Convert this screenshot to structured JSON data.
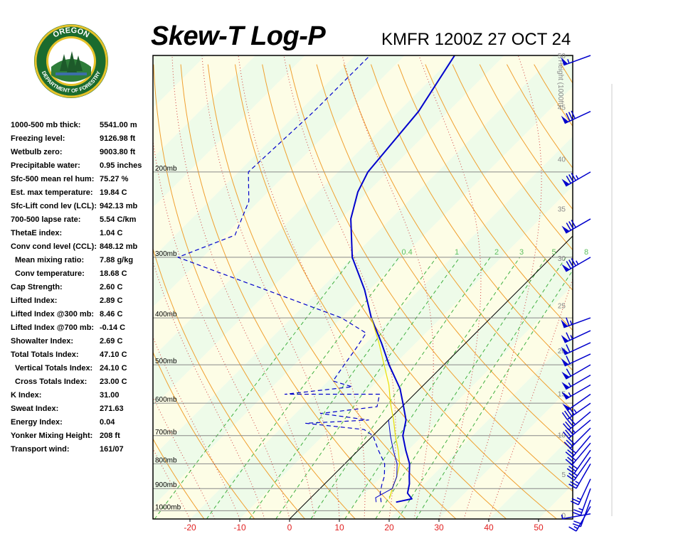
{
  "header": {
    "title": "Skew-T Log-P",
    "station_time": "KMFR 1200Z 27 OCT 24"
  },
  "logo": {
    "top_text": "OREGON",
    "bottom_text": "DEPARTMENT OF FORESTRY"
  },
  "indices": [
    {
      "label": "1000-500 mb thick:",
      "value": "5541.00 m"
    },
    {
      "label": "Freezing level:",
      "value": "9126.98 ft"
    },
    {
      "label": "Wetbulb zero:",
      "value": "9003.80 ft"
    },
    {
      "label": "Precipitable water:",
      "value": "0.95 inches"
    },
    {
      "label": "Sfc-500 mean rel hum:",
      "value": "75.27 %"
    },
    {
      "label": "Est. max temperature:",
      "value": "19.84 C"
    },
    {
      "label": "Sfc-Lift cond lev (LCL):",
      "value": "942.13 mb"
    },
    {
      "label": "700-500 lapse rate:",
      "value": "5.54 C/km"
    },
    {
      "label": "ThetaE index:",
      "value": "1.04 C"
    },
    {
      "label": "Conv cond level (CCL):",
      "value": "848.12 mb"
    },
    {
      "label": "Mean mixing ratio:",
      "value": "7.88 g/kg",
      "indent": true
    },
    {
      "label": "Conv temperature:",
      "value": "18.68 C",
      "indent": true
    },
    {
      "label": "Cap Strength:",
      "value": "2.60 C"
    },
    {
      "label": "Lifted Index:",
      "value": "2.89 C"
    },
    {
      "label": "Lifted Index @300 mb:",
      "value": "8.46 C"
    },
    {
      "label": "Lifted Index @700 mb:",
      "value": "-0.14 C"
    },
    {
      "label": "Showalter Index:",
      "value": "2.69 C"
    },
    {
      "label": "Total Totals Index:",
      "value": "47.10 C"
    },
    {
      "label": "Vertical Totals Index:",
      "value": "24.10 C",
      "indent": true
    },
    {
      "label": "Cross Totals Index:",
      "value": "23.00 C",
      "indent": true
    },
    {
      "label": "K Index:",
      "value": "31.00"
    },
    {
      "label": "Sweat Index:",
      "value": "271.63"
    },
    {
      "label": "Energy Index:",
      "value": "0.04"
    },
    {
      "label": "Yonker Mixing Height:",
      "value": "208 ft"
    },
    {
      "label": "Transport wind:",
      "value": "161/07"
    }
  ],
  "chart_data": {
    "type": "line",
    "xlabel_ticks": [
      "-20",
      "-10",
      "0",
      "10",
      "20",
      "30",
      "40",
      "50"
    ],
    "x_ticks": [
      -20,
      -10,
      0,
      10,
      20,
      30,
      40,
      50
    ],
    "xlim": [
      -29,
      56
    ],
    "x_unit": "C",
    "pressure_levels": [
      200,
      300,
      400,
      500,
      600,
      700,
      800,
      900,
      1000
    ],
    "pressure_labels": [
      "200mb",
      "300mb",
      "400mb",
      "500mb",
      "600mb",
      "700mb",
      "800mb",
      "900mb",
      "1000mb"
    ],
    "height_axis_label": "Height (1000ft)",
    "height_ticks": [
      {
        "label": "0",
        "p": 1020
      },
      {
        "label": "5",
        "p": 840
      },
      {
        "label": "10",
        "p": 697
      },
      {
        "label": "15",
        "p": 573
      },
      {
        "label": "20",
        "p": 467
      },
      {
        "label": "25",
        "p": 377
      },
      {
        "label": "30",
        "p": 301
      },
      {
        "label": "35",
        "p": 238
      },
      {
        "label": "40",
        "p": 188
      },
      {
        "label": "45",
        "p": 147
      },
      {
        "label": "50",
        "p": 115
      }
    ],
    "mixing_ratio_labels": [
      {
        "label": "0.4",
        "t": -29
      },
      {
        "label": "1",
        "t": -19
      },
      {
        "label": "2",
        "t": -11
      },
      {
        "label": "3",
        "t": -6
      },
      {
        "label": "5",
        "t": 0.5
      },
      {
        "label": "8",
        "t": 7
      }
    ],
    "series": [
      {
        "name": "",
        "color": "#0000cc",
        "style": "solid",
        "points": [
          {
            "p": 960,
            "t": 18
          },
          {
            "p": 945,
            "t": 20.5
          },
          {
            "p": 920,
            "t": 18.5
          },
          {
            "p": 880,
            "t": 17
          },
          {
            "p": 850,
            "t": 15.5
          },
          {
            "p": 800,
            "t": 13
          },
          {
            "p": 750,
            "t": 9.5
          },
          {
            "p": 700,
            "t": 6
          },
          {
            "p": 650,
            "t": 3.5
          },
          {
            "p": 600,
            "t": -0.5
          },
          {
            "p": 560,
            "t": -4
          },
          {
            "p": 500,
            "t": -11
          },
          {
            "p": 450,
            "t": -17
          },
          {
            "p": 400,
            "t": -24
          },
          {
            "p": 350,
            "t": -31
          },
          {
            "p": 300,
            "t": -40
          },
          {
            "p": 250,
            "t": -48
          },
          {
            "p": 220,
            "t": -52
          },
          {
            "p": 200,
            "t": -54
          },
          {
            "p": 150,
            "t": -56
          },
          {
            "p": 115,
            "t": -60
          }
        ]
      },
      {
        "name": "",
        "color": "#0000cc",
        "style": "dash",
        "points": [
          {
            "p": 960,
            "t": 15
          },
          {
            "p": 920,
            "t": 13
          },
          {
            "p": 880,
            "t": 11.5
          },
          {
            "p": 850,
            "t": 10.5
          },
          {
            "p": 800,
            "t": 8
          },
          {
            "p": 750,
            "t": 4
          },
          {
            "p": 700,
            "t": 0
          },
          {
            "p": 680,
            "t": -3
          },
          {
            "p": 660,
            "t": -16
          },
          {
            "p": 650,
            "t": -4
          },
          {
            "p": 630,
            "t": -15
          },
          {
            "p": 610,
            "t": -5
          },
          {
            "p": 575,
            "t": -7
          },
          {
            "p": 575,
            "t": -26
          },
          {
            "p": 555,
            "t": -14
          },
          {
            "p": 540,
            "t": -19
          },
          {
            "p": 500,
            "t": -20
          },
          {
            "p": 460,
            "t": -21
          },
          {
            "p": 430,
            "t": -22
          },
          {
            "p": 400,
            "t": -30
          },
          {
            "p": 300,
            "t": -75
          },
          {
            "p": 270,
            "t": -68
          },
          {
            "p": 230,
            "t": -72
          },
          {
            "p": 200,
            "t": -78
          },
          {
            "p": 150,
            "t": -77
          },
          {
            "p": 115,
            "t": -77
          }
        ]
      },
      {
        "name": "",
        "color": "#e8e000",
        "style": "solid",
        "points": [
          {
            "p": 945,
            "t": 16
          },
          {
            "p": 900,
            "t": 14.5
          },
          {
            "p": 850,
            "t": 13
          },
          {
            "p": 800,
            "t": 11
          },
          {
            "p": 750,
            "t": 8
          },
          {
            "p": 700,
            "t": 4.5
          },
          {
            "p": 650,
            "t": 1
          },
          {
            "p": 600,
            "t": -3
          },
          {
            "p": 550,
            "t": -7
          },
          {
            "p": 500,
            "t": -12
          },
          {
            "p": 450,
            "t": -17.5
          },
          {
            "p": 400,
            "t": -24
          }
        ]
      },
      {
        "name": "",
        "color": "#0000cc",
        "style": "thin",
        "points": [
          {
            "p": 960,
            "t": 14
          },
          {
            "p": 940,
            "t": 13
          },
          {
            "p": 900,
            "t": 14.5
          },
          {
            "p": 850,
            "t": 13
          },
          {
            "p": 800,
            "t": 10.5
          },
          {
            "p": 750,
            "t": 7
          },
          {
            "p": 700,
            "t": 3.5
          },
          {
            "p": 650,
            "t": 0
          }
        ]
      }
    ],
    "wind_barbs": [
      {
        "p": 1015,
        "dir": 260,
        "spd": 5
      },
      {
        "p": 980,
        "dir": 210,
        "spd": 15
      },
      {
        "p": 950,
        "dir": 200,
        "spd": 20
      },
      {
        "p": 900,
        "dir": 200,
        "spd": 25
      },
      {
        "p": 860,
        "dir": 205,
        "spd": 25
      },
      {
        "p": 800,
        "dir": 210,
        "spd": 25
      },
      {
        "p": 775,
        "dir": 215,
        "spd": 30
      },
      {
        "p": 750,
        "dir": 215,
        "spd": 30
      },
      {
        "p": 725,
        "dir": 220,
        "spd": 30
      },
      {
        "p": 700,
        "dir": 220,
        "spd": 30
      },
      {
        "p": 675,
        "dir": 225,
        "spd": 30
      },
      {
        "p": 650,
        "dir": 230,
        "spd": 35
      },
      {
        "p": 625,
        "dir": 230,
        "spd": 40
      },
      {
        "p": 600,
        "dir": 235,
        "spd": 45
      },
      {
        "p": 575,
        "dir": 235,
        "spd": 50
      },
      {
        "p": 550,
        "dir": 240,
        "spd": 55
      },
      {
        "p": 525,
        "dir": 240,
        "spd": 55
      },
      {
        "p": 500,
        "dir": 240,
        "spd": 60
      },
      {
        "p": 475,
        "dir": 245,
        "spd": 60
      },
      {
        "p": 450,
        "dir": 245,
        "spd": 60
      },
      {
        "p": 425,
        "dir": 245,
        "spd": 65
      },
      {
        "p": 400,
        "dir": 250,
        "spd": 65
      },
      {
        "p": 300,
        "dir": 240,
        "spd": 85
      },
      {
        "p": 250,
        "dir": 240,
        "spd": 80
      },
      {
        "p": 200,
        "dir": 240,
        "spd": 85
      },
      {
        "p": 150,
        "dir": 245,
        "spd": 80
      },
      {
        "p": 115,
        "dir": 250,
        "spd": 55
      }
    ],
    "grid": true
  }
}
